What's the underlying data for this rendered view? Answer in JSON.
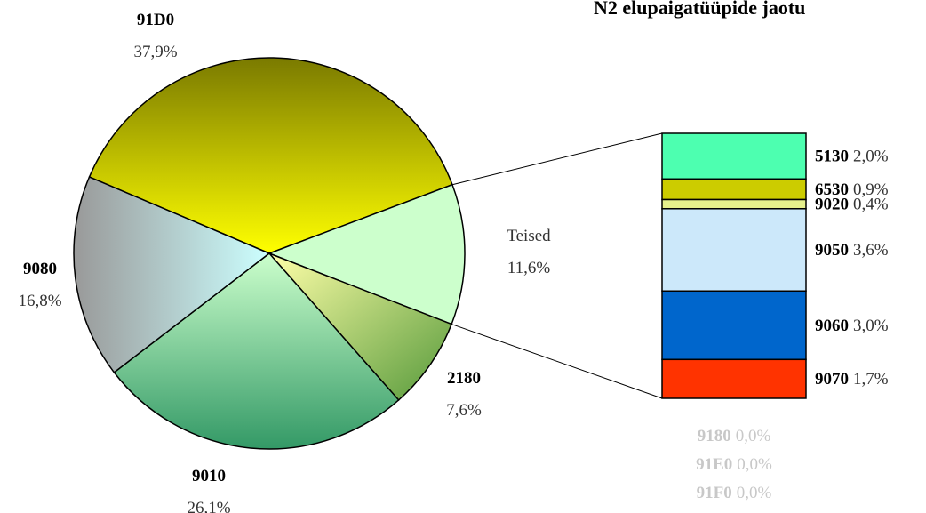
{
  "chart_data": {
    "type": "pie-of-bar",
    "title": "N2 elupaigatüüpide jaotu",
    "pie": {
      "categories": [
        "91D0",
        "Teised",
        "2180",
        "9010",
        "9080"
      ],
      "values": [
        37.9,
        11.6,
        7.6,
        26.1,
        16.8
      ],
      "value_labels": [
        "37,9%",
        "11,6%",
        "7,6%",
        "26,1%",
        "16,8%"
      ],
      "colors": [
        [
          "#7a7a00",
          "#ffff00"
        ],
        [
          "#ccffcc",
          "#ccffcc"
        ],
        [
          "#ffffa8",
          "#55993a"
        ],
        [
          "#ccffcc",
          "#339966"
        ],
        [
          "#999999",
          "#ccffff"
        ]
      ],
      "gradient": [
        "vertical",
        "vertical",
        "diagonal",
        "vertical",
        "horizontal"
      ]
    },
    "bar": {
      "categories": [
        "5130",
        "6530",
        "9020",
        "9050",
        "9060",
        "9070",
        "9180",
        "91E0",
        "91F0"
      ],
      "values": [
        2.0,
        0.9,
        0.4,
        3.6,
        3.0,
        1.7,
        0.0,
        0.0,
        0.0
      ],
      "value_labels": [
        "2,0%",
        "0,9%",
        "0,4%",
        "3,6%",
        "3,0%",
        "1,7%",
        "0,0%",
        "0,0%",
        "0,0%"
      ],
      "colors": [
        "#4dffb0",
        "#cccc00",
        "#e6f08c",
        "#cce8fa",
        "#0066cc",
        "#ff3300",
        "#cccccc",
        "#cccccc",
        "#cccccc"
      ]
    }
  }
}
